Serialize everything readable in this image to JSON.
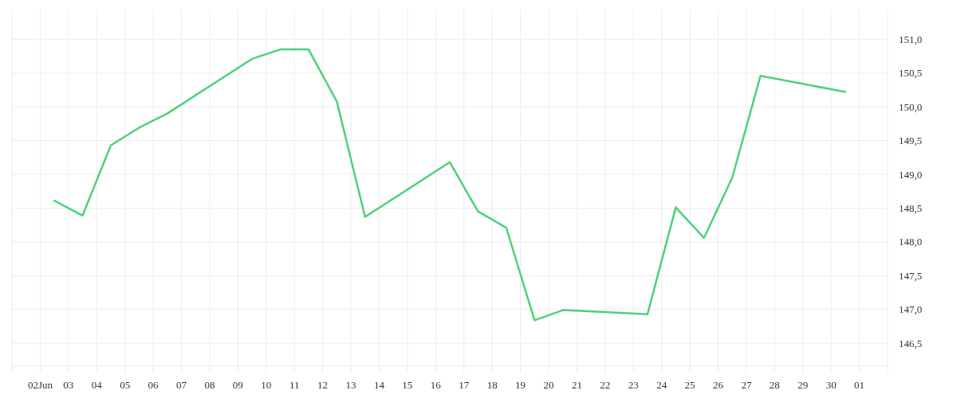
{
  "chart_data": {
    "type": "line",
    "x": [
      "--06-02T12:00",
      "--06-03T12:00",
      "--06-04T12:00",
      "--06-05T12:00",
      "--06-06T12:00",
      "--06-09T12:00",
      "--06-10T12:00",
      "--06-11T12:00",
      "--06-12T12:00",
      "--06-13T12:00",
      "--06-16T12:00",
      "--06-17T12:00",
      "--06-18T12:00",
      "--06-19T12:00",
      "--06-20T12:00",
      "--06-23T12:00",
      "--06-24T12:00",
      "--06-25T12:00",
      "--06-26T12:00",
      "--06-27T12:00",
      "--06-30T12:00"
    ],
    "series": [
      {
        "color": "#4dd27a",
        "values": [
          148.61,
          148.39,
          149.43,
          149.69,
          149.9,
          150.71,
          150.85,
          150.85,
          150.08,
          148.37,
          149.18,
          148.45,
          148.21,
          146.84,
          146.99,
          146.93,
          148.51,
          148.06,
          148.95,
          150.46,
          150.22
        ]
      }
    ],
    "xlim": [
      "--06-01",
      "--07-02"
    ],
    "xticks": [
      {
        "value": "--06-02",
        "label": "02Jun"
      },
      {
        "value": "--06-03",
        "label": "03"
      },
      {
        "value": "--06-04",
        "label": "04"
      },
      {
        "value": "--06-05",
        "label": "05"
      },
      {
        "value": "--06-06",
        "label": "06"
      },
      {
        "value": "--06-07",
        "label": "07"
      },
      {
        "value": "--06-08",
        "label": "08"
      },
      {
        "value": "--06-09",
        "label": "09"
      },
      {
        "value": "--06-10",
        "label": "10"
      },
      {
        "value": "--06-11",
        "label": "11"
      },
      {
        "value": "--06-12",
        "label": "12"
      },
      {
        "value": "--06-13",
        "label": "13"
      },
      {
        "value": "--06-14",
        "label": "14"
      },
      {
        "value": "--06-15",
        "label": "15"
      },
      {
        "value": "--06-16",
        "label": "16"
      },
      {
        "value": "--06-17",
        "label": "17"
      },
      {
        "value": "--06-18",
        "label": "18"
      },
      {
        "value": "--06-19",
        "label": "19"
      },
      {
        "value": "--06-20",
        "label": "20"
      },
      {
        "value": "--06-21",
        "label": "21"
      },
      {
        "value": "--06-22",
        "label": "22"
      },
      {
        "value": "--06-23",
        "label": "23"
      },
      {
        "value": "--06-24",
        "label": "24"
      },
      {
        "value": "--06-25",
        "label": "25"
      },
      {
        "value": "--06-26",
        "label": "26"
      },
      {
        "value": "--06-27",
        "label": "27"
      },
      {
        "value": "--06-28",
        "label": "28"
      },
      {
        "value": "--06-29",
        "label": "29"
      },
      {
        "value": "--06-30",
        "label": "30"
      },
      {
        "value": "--07-01",
        "label": "01"
      }
    ],
    "ylim": [
      146.16,
      151.44
    ],
    "yticks": [
      {
        "value": 146.5,
        "label": "146,5"
      },
      {
        "value": 147,
        "label": "147,0"
      },
      {
        "value": 147.5,
        "label": "147,5"
      },
      {
        "value": 148,
        "label": "148,0"
      },
      {
        "value": 148.5,
        "label": "148,5"
      },
      {
        "value": 149,
        "label": "149,0"
      },
      {
        "value": 149.5,
        "label": "149,5"
      },
      {
        "value": 150,
        "label": "150,0"
      },
      {
        "value": 150.5,
        "label": "150,5"
      },
      {
        "value": 151,
        "label": "151,0"
      }
    ],
    "grid": true,
    "marker": "none",
    "line_style": "solid"
  }
}
